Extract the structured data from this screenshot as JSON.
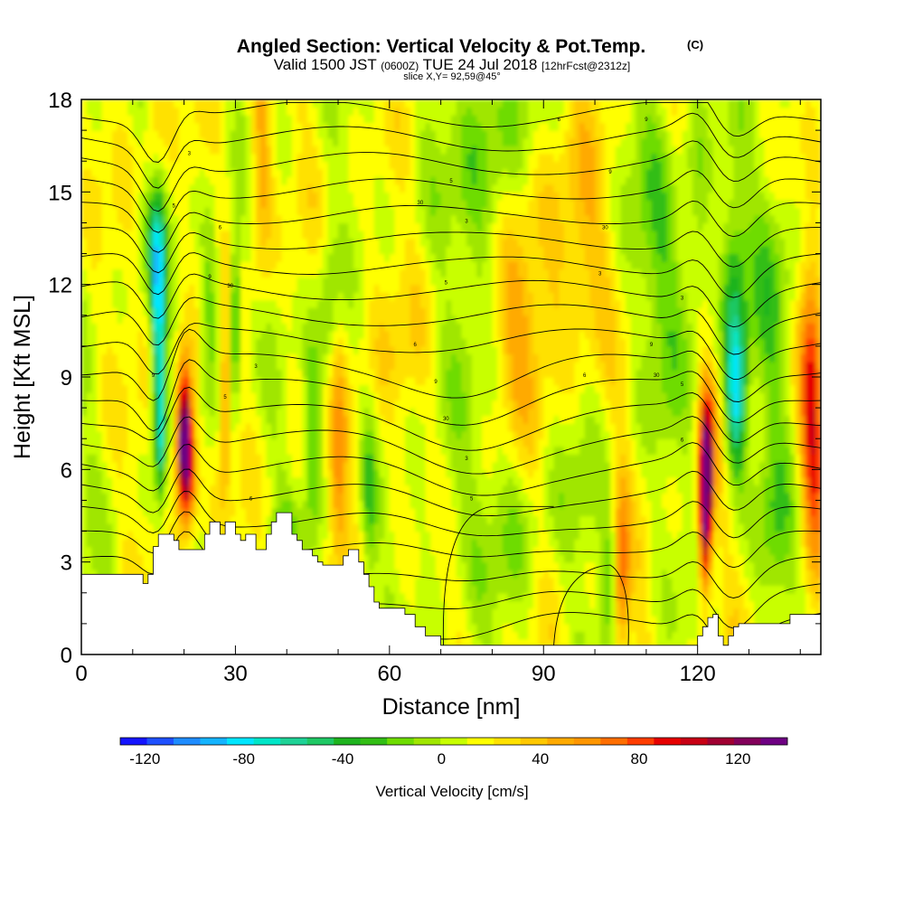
{
  "chart_data": {
    "type": "heatmap",
    "title": "Angled Section: Vertical Velocity & Pot.Temp.",
    "title_mark": "(C)",
    "subtitle_parts": [
      "Valid 1500 JST",
      "(0600Z)",
      "TUE 24 Jul 2018",
      "[12hrFcst@2312z]"
    ],
    "slice_text": "slice X,Y= 92,59@45°",
    "xlabel": "Distance [nm]",
    "ylabel": "Height [Kft MSL]",
    "xlim": [
      0,
      144
    ],
    "ylim": [
      0,
      18
    ],
    "x_ticks": [
      0,
      30,
      60,
      90,
      120
    ],
    "y_ticks": [
      0,
      3,
      6,
      9,
      12,
      15,
      18
    ],
    "grid": false,
    "colorbar": {
      "label": "Vertical Velocity [cm/s]",
      "tick_labels": [
        -120,
        -80,
        -40,
        0,
        40,
        80,
        120
      ],
      "min": -130,
      "max": 140,
      "colors": [
        "#1414ff",
        "#1e50ff",
        "#1e8cff",
        "#14b4ff",
        "#00e6ff",
        "#00e6c8",
        "#1ed296",
        "#1ec864",
        "#1eb41e",
        "#32be14",
        "#6edc00",
        "#a0e600",
        "#c8ff00",
        "#ffff00",
        "#ffe100",
        "#ffc800",
        "#ffaa00",
        "#ff9600",
        "#ff6e00",
        "#ff3c00",
        "#e60000",
        "#c80014",
        "#a00032",
        "#82005a",
        "#6e0082"
      ]
    },
    "terrain": {
      "x": [
        0,
        10,
        12,
        13,
        14,
        15,
        16,
        17,
        18,
        19,
        20,
        21,
        22,
        23,
        24,
        25,
        26,
        27,
        28,
        29,
        30,
        31,
        32,
        33,
        34,
        35,
        36,
        37,
        38,
        39,
        40,
        41,
        42,
        43,
        44,
        45,
        46,
        47,
        48,
        49,
        50,
        51,
        52,
        53,
        54,
        55,
        56,
        57,
        58,
        60,
        63,
        65,
        67,
        70,
        72,
        75,
        90,
        95,
        100,
        105,
        110,
        115,
        120,
        121,
        122,
        123,
        124,
        125,
        126,
        127,
        128,
        130,
        135,
        138,
        140,
        144
      ],
      "height_kft": [
        2.6,
        2.6,
        2.3,
        2.6,
        3.5,
        3.9,
        3.9,
        3.9,
        3.7,
        3.4,
        3.4,
        3.4,
        3.4,
        3.4,
        3.9,
        4.3,
        4.3,
        3.9,
        4.3,
        4.3,
        3.9,
        3.7,
        3.9,
        3.9,
        3.4,
        3.4,
        3.9,
        4.3,
        4.6,
        4.6,
        4.6,
        3.9,
        3.7,
        3.4,
        3.4,
        3.2,
        3.0,
        2.9,
        2.9,
        2.9,
        2.9,
        3.2,
        3.4,
        3.4,
        3.0,
        2.6,
        2.2,
        1.7,
        1.5,
        1.5,
        1.3,
        0.9,
        0.6,
        0.3,
        0.3,
        0.3,
        0.3,
        0.3,
        0.3,
        0.3,
        0.3,
        0.3,
        0.6,
        0.9,
        1.2,
        1.3,
        0.6,
        0.3,
        0.6,
        0.9,
        1.0,
        1.0,
        1.0,
        1.3,
        1.3,
        1.3
      ]
    },
    "contour_labels": [
      "3",
      "5",
      "6",
      "9",
      "30"
    ],
    "features": [
      {
        "type": "updraft",
        "x": 20,
        "y": 7.4,
        "w_max": 140
      },
      {
        "type": "updraft",
        "x": 121.5,
        "y": 5.0,
        "w_max": 135
      },
      {
        "type": "downdraft",
        "x": 15,
        "y": 10.2,
        "w_max": -85
      },
      {
        "type": "downdraft",
        "x": 127,
        "y": 8.2,
        "w_max": -85
      }
    ]
  }
}
